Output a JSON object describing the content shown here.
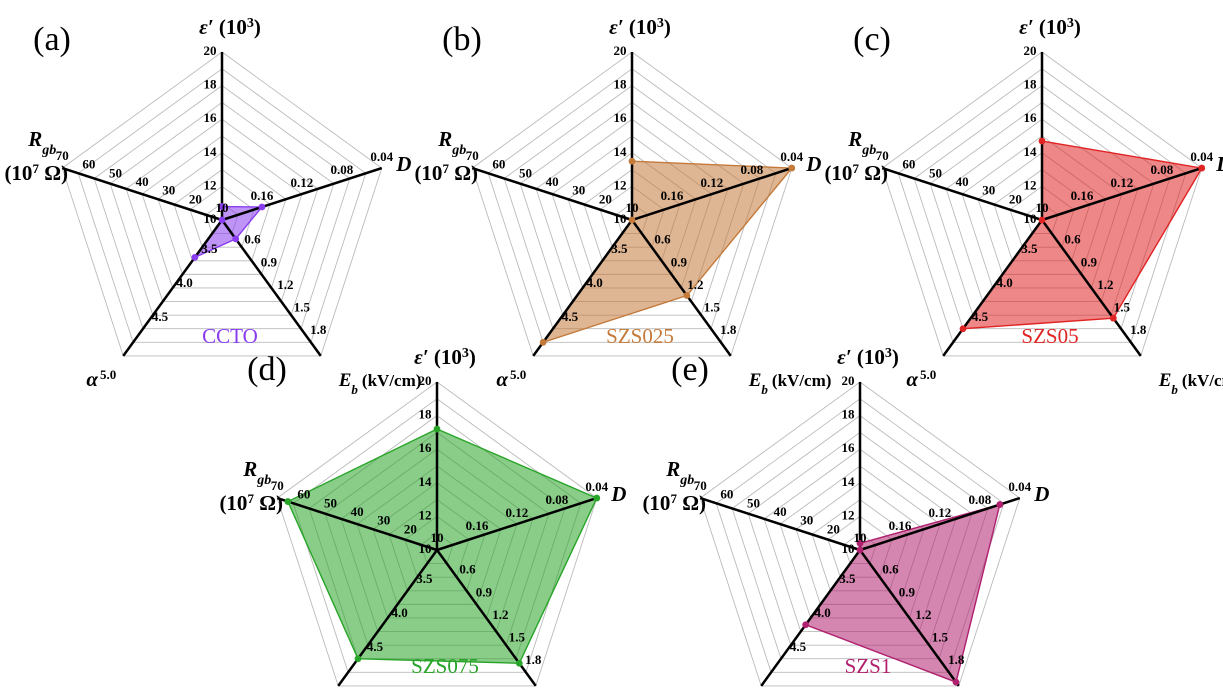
{
  "axes": [
    {
      "key": "eps",
      "label_html": "ε′ (10³)",
      "ticks": [
        "10",
        "12",
        "14",
        "16",
        "18",
        "20"
      ],
      "min": 10,
      "max": 20
    },
    {
      "key": "D",
      "label_html": "D",
      "ticks": [
        "0.16",
        "0.12",
        "0.08",
        "0.04"
      ],
      "min": 0.2,
      "max": 0.04
    },
    {
      "key": "Eb",
      "label_html": "Eb (kV/cm)",
      "ticks": [
        "0.6",
        "0.9",
        "1.2",
        "1.5",
        "1.8"
      ],
      "min": 0.3,
      "max": 2.1
    },
    {
      "key": "alpha",
      "label_html": "α 5.0",
      "ticks": [
        "3.5",
        "4.0",
        "4.5",
        "5.0"
      ],
      "min": 3.0,
      "max": 5.0
    },
    {
      "key": "Rgb",
      "label_html": "Rgb (10⁷ Ω)",
      "ticks": [
        "10",
        "20",
        "30",
        "40",
        "50",
        "60",
        "70"
      ],
      "min": 10,
      "max": 70
    }
  ],
  "axis_text": {
    "eps_main": "ε′",
    "eps_unit": "(10",
    "eps_sup": "3",
    "eps_close": ")",
    "D": "D",
    "Eb_main": "E",
    "Eb_sub": "b",
    "Eb_unit": "(kV/cm)",
    "alpha": "α",
    "alpha_sup": "5.0",
    "Rgb_main": "R",
    "Rgb_sub": "gb",
    "Rgb_unit1": "(10",
    "Rgb_sup": "7",
    "Rgb_unit2": " Ω)"
  },
  "chart_data": [
    {
      "type": "radar",
      "panel": "(a)",
      "sample": "CCTO",
      "color": "#8a3df0",
      "values": {
        "eps": 10.8,
        "D": 0.16,
        "Eb": 0.55,
        "alpha": 3.55,
        "Rgb": 10
      }
    },
    {
      "type": "radar",
      "panel": "(b)",
      "sample": "SZS025",
      "color": "#c47a3a",
      "values": {
        "eps": 13.5,
        "D": 0.04,
        "Eb": 1.3,
        "alpha": 4.8,
        "Rgb": 10
      }
    },
    {
      "type": "radar",
      "panel": "(c)",
      "sample": "SZS05",
      "color": "#e02424",
      "values": {
        "eps": 14.7,
        "D": 0.04,
        "Eb": 1.6,
        "alpha": 4.6,
        "Rgb": 10
      }
    },
    {
      "type": "radar",
      "panel": "(d)",
      "sample": "SZS075",
      "color": "#28a428",
      "values": {
        "eps": 17.2,
        "D": 0.04,
        "Eb": 1.8,
        "alpha": 4.6,
        "Rgb": 66
      }
    },
    {
      "type": "radar",
      "panel": "(e)",
      "sample": "SZS1",
      "color": "#b0206f",
      "values": {
        "eps": 10.4,
        "D": 0.06,
        "Eb": 2.05,
        "alpha": 4.1,
        "Rgb": 10
      }
    }
  ]
}
